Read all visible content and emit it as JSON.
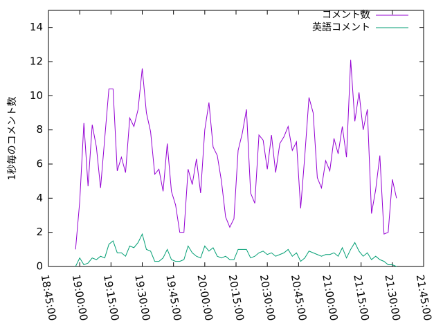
{
  "chart_data": {
    "type": "line",
    "y_label": "1秒毎のコメント数",
    "x": [
      "18:58:00",
      "19:00:00",
      "19:02:00",
      "19:04:00",
      "19:06:00",
      "19:08:00",
      "19:10:00",
      "19:12:00",
      "19:14:00",
      "19:16:00",
      "19:18:00",
      "19:20:00",
      "19:22:00",
      "19:24:00",
      "19:26:00",
      "19:28:00",
      "19:30:00",
      "19:32:00",
      "19:34:00",
      "19:36:00",
      "19:38:00",
      "19:40:00",
      "19:42:00",
      "19:44:00",
      "19:46:00",
      "19:48:00",
      "19:50:00",
      "19:52:00",
      "19:54:00",
      "19:56:00",
      "19:58:00",
      "20:00:00",
      "20:02:00",
      "20:04:00",
      "20:06:00",
      "20:08:00",
      "20:10:00",
      "20:12:00",
      "20:14:00",
      "20:16:00",
      "20:18:00",
      "20:20:00",
      "20:22:00",
      "20:24:00",
      "20:26:00",
      "20:28:00",
      "20:30:00",
      "20:32:00",
      "20:34:00",
      "20:36:00",
      "20:38:00",
      "20:40:00",
      "20:42:00",
      "20:44:00",
      "20:46:00",
      "20:48:00",
      "20:50:00",
      "20:52:00",
      "20:54:00",
      "20:56:00",
      "20:58:00",
      "21:00:00",
      "21:02:00",
      "21:04:00",
      "21:06:00",
      "21:08:00",
      "21:10:00",
      "21:12:00",
      "21:14:00",
      "21:16:00",
      "21:18:00",
      "21:20:00",
      "21:22:00",
      "21:24:00",
      "21:26:00",
      "21:28:00",
      "21:30:00",
      "21:32:00"
    ],
    "series": [
      {
        "name": "コメント数",
        "color": "#9400d3",
        "values": [
          1.0,
          3.8,
          8.4,
          4.7,
          8.3,
          7.0,
          4.6,
          7.5,
          10.4,
          10.4,
          5.6,
          6.4,
          5.5,
          8.7,
          8.2,
          9.2,
          11.6,
          9.0,
          7.9,
          5.4,
          5.7,
          4.4,
          7.2,
          4.4,
          3.6,
          2.0,
          2.0,
          5.7,
          4.8,
          6.3,
          4.3,
          8.0,
          9.6,
          7.0,
          6.5,
          5.0,
          2.9,
          2.3,
          2.8,
          6.8,
          7.8,
          9.2,
          4.3,
          3.7,
          7.7,
          7.4,
          5.7,
          7.7,
          5.5,
          7.2,
          7.6,
          8.2,
          6.8,
          7.3,
          3.4,
          6.5,
          9.9,
          9.0,
          5.2,
          4.6,
          6.2,
          5.6,
          7.5,
          6.6,
          8.2,
          6.4,
          12.1,
          8.5,
          10.2,
          8.0,
          9.2,
          3.1,
          4.5,
          6.5,
          1.9,
          2.0,
          5.1,
          4.0
        ]
      },
      {
        "name": "英語コメント",
        "color": "#009e73",
        "values": [
          0.0,
          0.5,
          0.1,
          0.2,
          0.5,
          0.4,
          0.6,
          0.5,
          1.3,
          1.5,
          0.8,
          0.8,
          0.6,
          1.2,
          1.1,
          1.4,
          1.9,
          1.0,
          0.9,
          0.3,
          0.3,
          0.5,
          1.0,
          0.4,
          0.3,
          0.3,
          0.4,
          1.2,
          0.8,
          0.6,
          0.5,
          1.2,
          0.9,
          1.1,
          0.6,
          0.5,
          0.6,
          0.4,
          0.4,
          1.0,
          1.0,
          1.0,
          0.5,
          0.6,
          0.8,
          0.9,
          0.7,
          0.8,
          0.6,
          0.7,
          0.8,
          1.0,
          0.6,
          0.8,
          0.3,
          0.5,
          0.9,
          0.8,
          0.7,
          0.6,
          0.7,
          0.7,
          0.8,
          0.6,
          1.1,
          0.5,
          1.0,
          1.4,
          0.9,
          0.6,
          0.8,
          0.4,
          0.6,
          0.4,
          0.3,
          0.1,
          0.1,
          0.0
        ]
      }
    ],
    "xlim": [
      "18:45:00",
      "21:45:00"
    ],
    "xticks": [
      "18:45:00",
      "19:00:00",
      "19:15:00",
      "19:30:00",
      "19:45:00",
      "20:00:00",
      "20:15:00",
      "20:30:00",
      "20:45:00",
      "21:00:00",
      "21:15:00",
      "21:30:00",
      "21:45:00"
    ],
    "ylim": [
      0,
      15
    ],
    "yticks": [
      0,
      2,
      4,
      6,
      8,
      10,
      12,
      14
    ],
    "legend": "top-right"
  }
}
